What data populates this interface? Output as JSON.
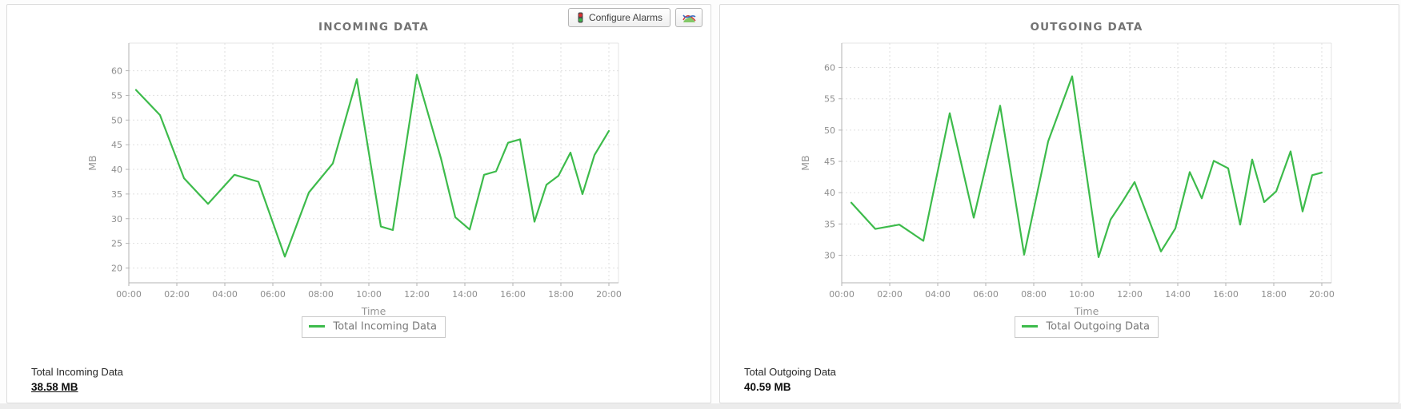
{
  "toolbar": {
    "configure_alarms_label": "Configure Alarms"
  },
  "panels": [
    {
      "title": "INCOMING DATA",
      "summary_label": "Total Incoming Data",
      "summary_value": "38.58 MB"
    },
    {
      "title": "OUTGOING DATA",
      "summary_label": "Total Outgoing Data",
      "summary_value": "40.59 MB"
    }
  ],
  "colors": {
    "line_green": "#3dbb4b",
    "axis": "#b3b3b3",
    "grid": "#dfdfdf",
    "plot_border": "#e4e4e4"
  },
  "chart_data": [
    {
      "type": "line",
      "title": "INCOMING DATA",
      "xlabel": "Time",
      "ylabel": "MB",
      "legend": "Total Incoming Data",
      "legend_position": "bottom",
      "grid": true,
      "line_color": "#3dbb4b",
      "ylim": [
        17.0,
        65.6
      ],
      "yticks": [
        20,
        25,
        30,
        35,
        40,
        45,
        50,
        55,
        60
      ],
      "xlim": [
        0,
        20.4
      ],
      "xtick_hours": [
        0,
        2,
        4,
        6,
        8,
        10,
        12,
        14,
        16,
        18,
        20
      ],
      "xtick_labels": [
        "00:00",
        "02:00",
        "04:00",
        "06:00",
        "08:00",
        "10:00",
        "12:00",
        "14:00",
        "16:00",
        "18:00",
        "20:00"
      ],
      "points": [
        [
          0.3,
          56.1
        ],
        [
          1.3,
          51.0
        ],
        [
          2.3,
          38.2
        ],
        [
          3.3,
          33.0
        ],
        [
          4.4,
          38.9
        ],
        [
          5.4,
          37.5
        ],
        [
          6.5,
          22.3
        ],
        [
          7.5,
          35.3
        ],
        [
          8.5,
          41.2
        ],
        [
          9.5,
          58.3
        ],
        [
          10.5,
          28.4
        ],
        [
          11.0,
          27.7
        ],
        [
          12.0,
          59.2
        ],
        [
          13.0,
          42.3
        ],
        [
          13.6,
          30.3
        ],
        [
          14.2,
          27.8
        ],
        [
          14.8,
          38.9
        ],
        [
          15.3,
          39.6
        ],
        [
          15.8,
          45.4
        ],
        [
          16.3,
          46.1
        ],
        [
          16.9,
          29.4
        ],
        [
          17.4,
          36.9
        ],
        [
          17.9,
          38.7
        ],
        [
          18.4,
          43.4
        ],
        [
          18.9,
          35.0
        ],
        [
          19.4,
          42.9
        ],
        [
          20.0,
          47.8
        ]
      ]
    },
    {
      "type": "line",
      "title": "OUTGOING DATA",
      "xlabel": "Time",
      "ylabel": "MB",
      "legend": "Total Outgoing Data",
      "legend_position": "bottom",
      "grid": true,
      "line_color": "#3dbb4b",
      "ylim": [
        25.6,
        63.9
      ],
      "yticks": [
        30,
        35,
        40,
        45,
        50,
        55,
        60
      ],
      "xlim": [
        0,
        20.4
      ],
      "xtick_hours": [
        0,
        2,
        4,
        6,
        8,
        10,
        12,
        14,
        16,
        18,
        20
      ],
      "xtick_labels": [
        "00:00",
        "02:00",
        "04:00",
        "06:00",
        "08:00",
        "10:00",
        "12:00",
        "14:00",
        "16:00",
        "18:00",
        "20:00"
      ],
      "points": [
        [
          0.4,
          38.4
        ],
        [
          1.4,
          34.2
        ],
        [
          2.4,
          34.9
        ],
        [
          3.4,
          32.3
        ],
        [
          4.5,
          52.7
        ],
        [
          5.5,
          36.0
        ],
        [
          6.6,
          53.9
        ],
        [
          7.6,
          30.1
        ],
        [
          8.6,
          48.2
        ],
        [
          9.6,
          58.6
        ],
        [
          10.7,
          29.7
        ],
        [
          11.2,
          35.7
        ],
        [
          11.7,
          38.6
        ],
        [
          12.2,
          41.7
        ],
        [
          13.3,
          30.6
        ],
        [
          13.9,
          34.3
        ],
        [
          14.5,
          43.3
        ],
        [
          15.0,
          39.1
        ],
        [
          15.5,
          45.1
        ],
        [
          16.1,
          43.9
        ],
        [
          16.6,
          34.9
        ],
        [
          17.1,
          45.3
        ],
        [
          17.6,
          38.5
        ],
        [
          18.1,
          40.2
        ],
        [
          18.7,
          46.6
        ],
        [
          19.2,
          37.0
        ],
        [
          19.6,
          42.8
        ],
        [
          20.0,
          43.2
        ]
      ]
    }
  ]
}
